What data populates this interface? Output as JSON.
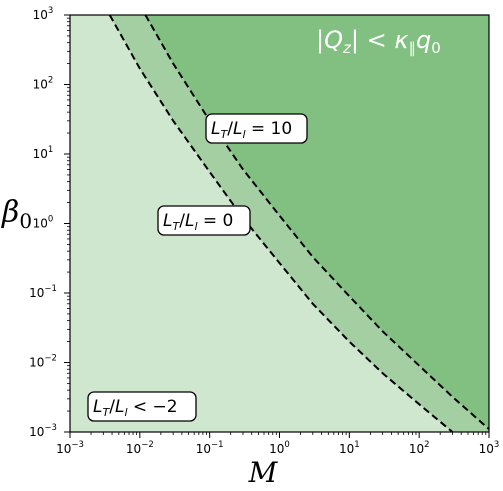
{
  "chart_data": {
    "type": "area",
    "x_scale": "log",
    "y_scale": "log",
    "xlim": [
      0.001,
      1000
    ],
    "ylim": [
      0.001,
      1000
    ],
    "x_ticks": [
      {
        "base": "10",
        "exp": "−3"
      },
      {
        "base": "10",
        "exp": "−2"
      },
      {
        "base": "10",
        "exp": "−1"
      },
      {
        "base": "10",
        "exp": "0"
      },
      {
        "base": "10",
        "exp": "1"
      },
      {
        "base": "10",
        "exp": "2"
      },
      {
        "base": "10",
        "exp": "3"
      }
    ],
    "y_ticks": [
      {
        "base": "10",
        "exp": "−3"
      },
      {
        "base": "10",
        "exp": "−2"
      },
      {
        "base": "10",
        "exp": "−1"
      },
      {
        "base": "10",
        "exp": "0"
      },
      {
        "base": "10",
        "exp": "1"
      },
      {
        "base": "10",
        "exp": "2"
      },
      {
        "base": "10",
        "exp": "3"
      }
    ],
    "xlabel": "M",
    "ylabel": {
      "main": "β",
      "sub": "0"
    },
    "grid": false,
    "curves": [
      {
        "label": {
          "a": "L",
          "a_sub": "T",
          "slash": "/",
          "b": "L",
          "b_sub": "l",
          "rel": " = 0"
        },
        "style": "dashed",
        "x": [
          0.0037,
          0.01,
          0.03,
          0.1,
          0.3,
          1,
          3,
          10,
          30,
          100,
          300
        ],
        "y": [
          1000,
          170,
          30,
          5.5,
          1.2,
          0.27,
          0.07,
          0.02,
          0.007,
          0.0025,
          0.001
        ]
      },
      {
        "label": {
          "a": "L",
          "a_sub": "T",
          "slash": "/",
          "b": "L",
          "b_sub": "l",
          "rel": " = 10"
        },
        "style": "dashed",
        "x": [
          0.012,
          0.03,
          0.1,
          0.3,
          1,
          3,
          10,
          30,
          100,
          300,
          1000
        ],
        "y": [
          1000,
          200,
          30,
          6,
          1.3,
          0.33,
          0.09,
          0.028,
          0.009,
          0.0032,
          0.0011
        ]
      }
    ],
    "regions": [
      {
        "label": {
          "a": "L",
          "a_sub": "T",
          "slash": "/",
          "b": "L",
          "b_sub": "l",
          "rel": " < −2"
        },
        "color": "#cfe6cf"
      },
      {
        "label": null,
        "color": "#a3cfa3"
      },
      {
        "label": {
          "left": "|",
          "q": "Q",
          "q_sub": "z",
          "mid": "| < ",
          "kappa": "κ",
          "kappa_sub": "∥",
          "qq": "q",
          "qq_sub": "0"
        },
        "color": "#82c082"
      }
    ]
  }
}
